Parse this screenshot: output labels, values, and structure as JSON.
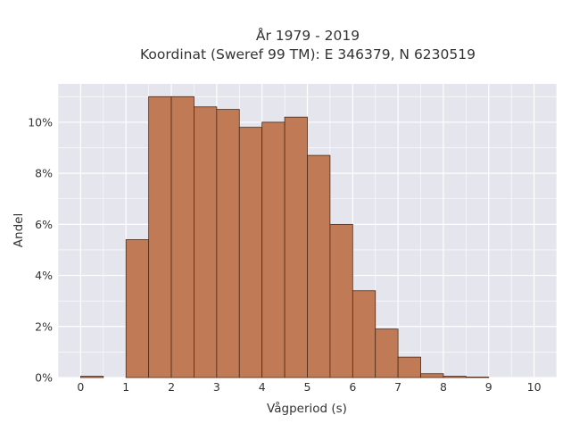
{
  "chart_data": {
    "type": "bar",
    "title_line1": "År 1979 - 2019",
    "title_line2": "Koordinat (Sweref 99 TM): E 346379, N 6230519",
    "xlabel": "Vågperiod (s)",
    "ylabel": "Andel",
    "bin_width": 0.5,
    "x": [
      0.25,
      1.25,
      1.75,
      2.25,
      2.75,
      3.25,
      3.75,
      4.25,
      4.75,
      5.25,
      5.75,
      6.25,
      6.75,
      7.25,
      7.75,
      8.25,
      8.75
    ],
    "values": [
      0.05,
      5.4,
      11.0,
      11.0,
      10.6,
      10.5,
      9.8,
      10.0,
      10.2,
      8.7,
      6.0,
      3.4,
      1.9,
      0.8,
      0.15,
      0.05,
      0.02
    ],
    "xlim": [
      -0.5,
      10.5
    ],
    "ylim": [
      0,
      11.5
    ],
    "x_ticks": [
      0,
      1,
      2,
      3,
      4,
      5,
      6,
      7,
      8,
      9,
      10
    ],
    "y_ticks": [
      0,
      2,
      4,
      6,
      8,
      10
    ],
    "y_tick_suffix": "%",
    "grid": true,
    "colors": {
      "bar_fill": "#c07a55",
      "bar_edge": "#4a2a18",
      "plot_bg": "#e5e5ee",
      "grid": "#ffffff"
    }
  }
}
